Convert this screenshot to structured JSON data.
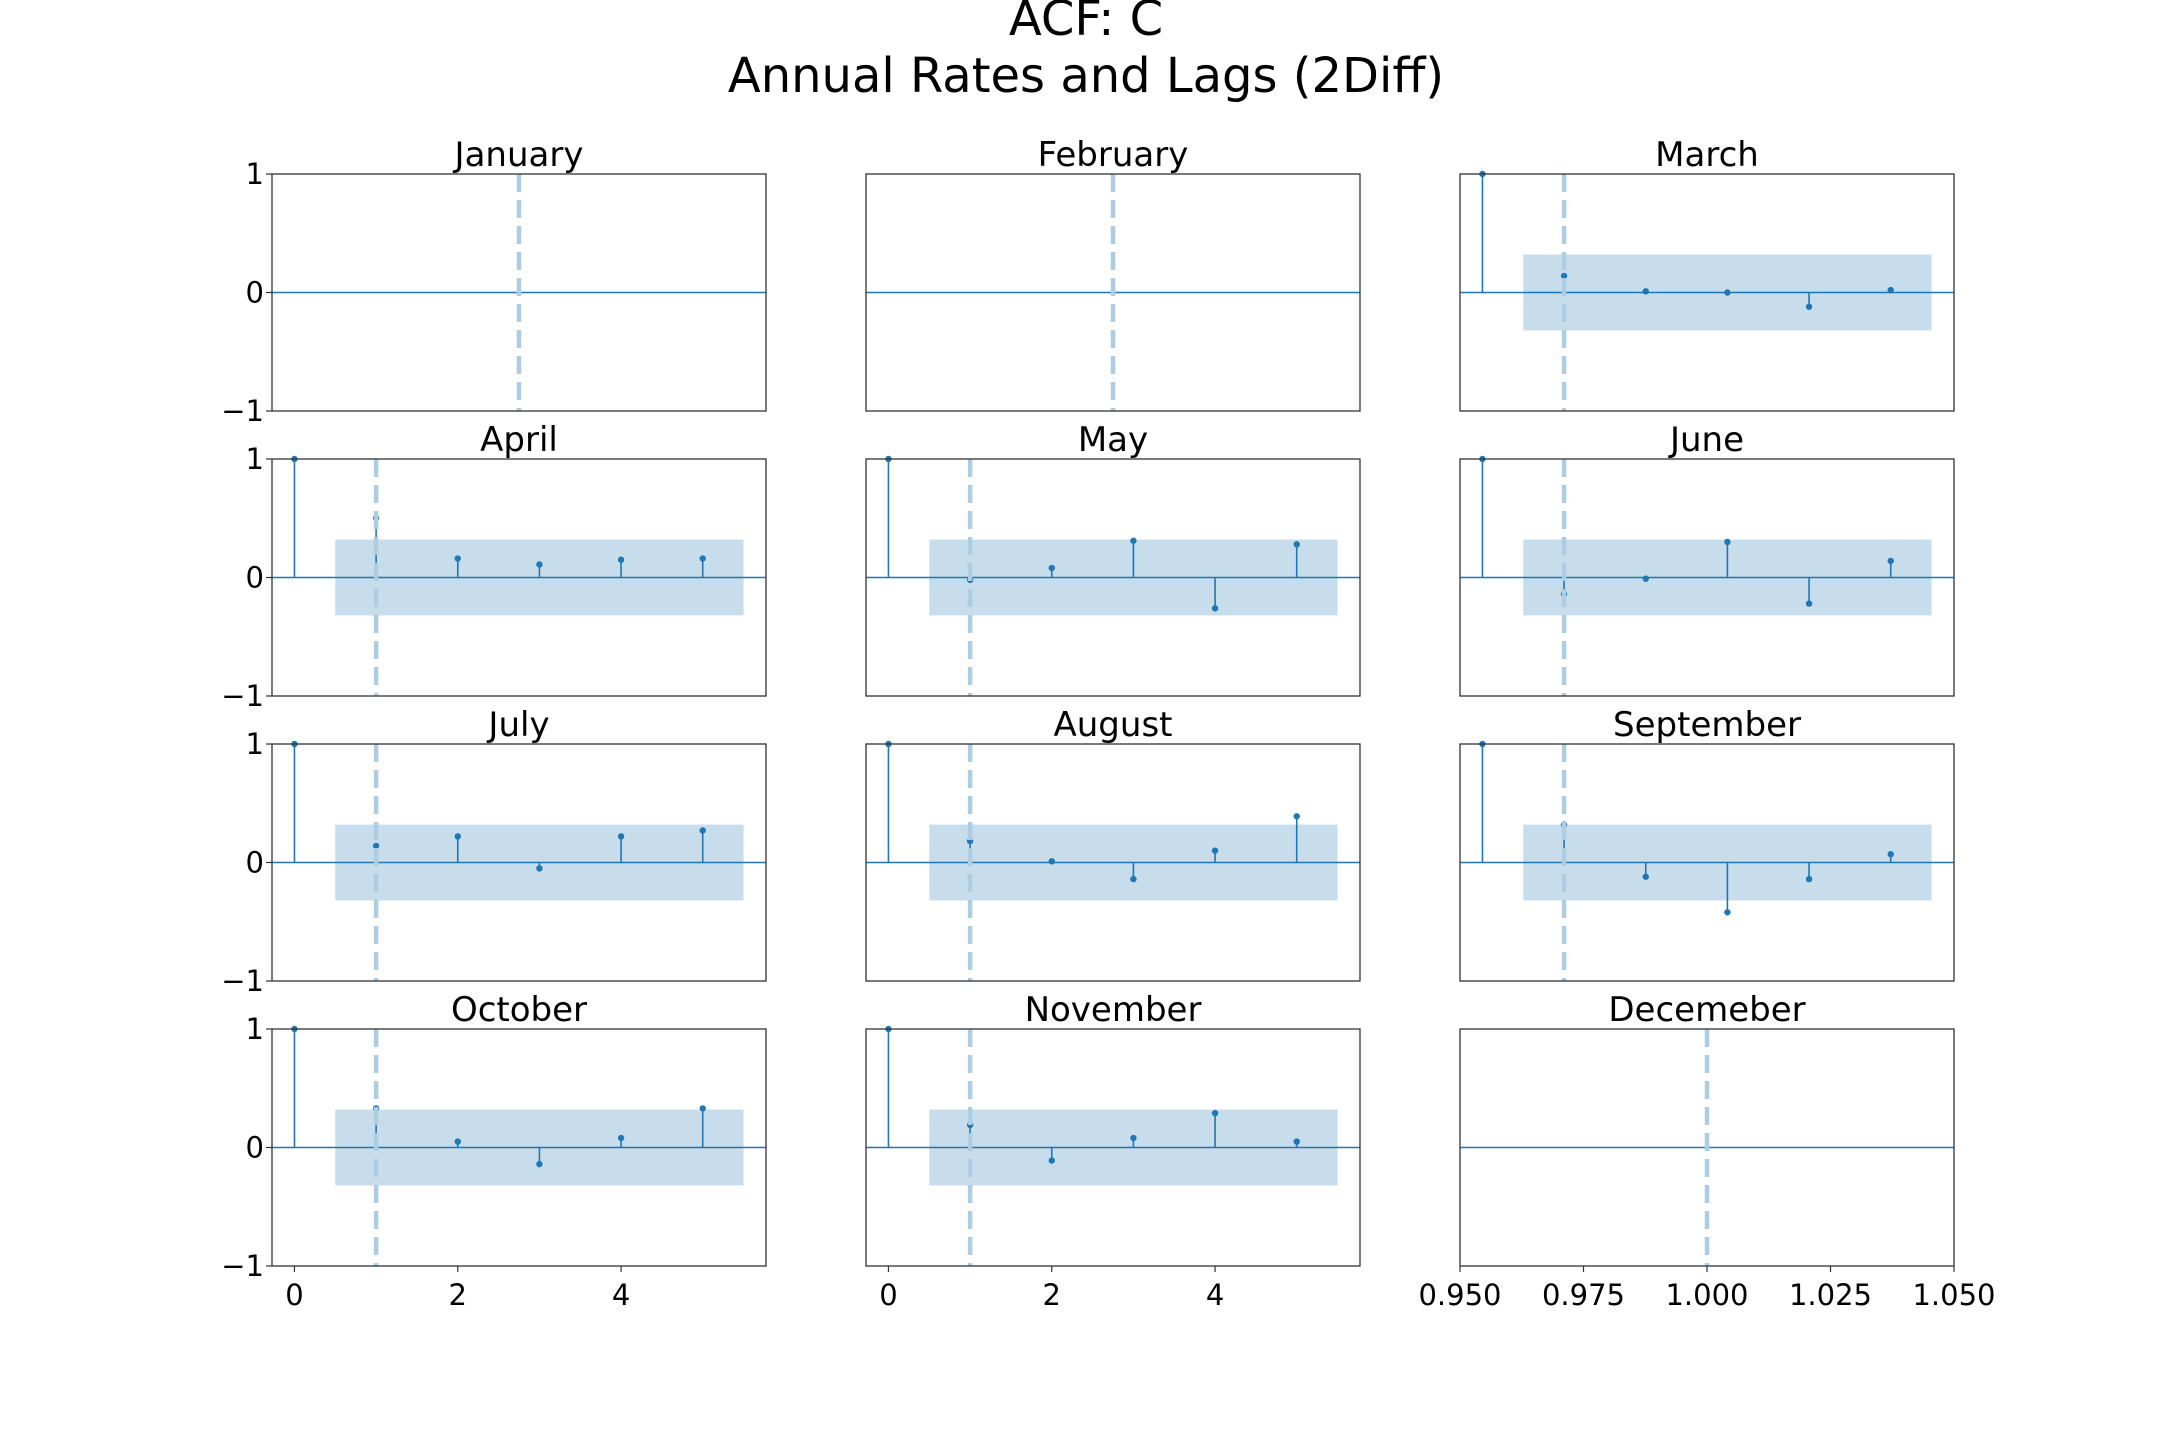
{
  "title_line1": "ACF: C",
  "title_line2": "Annual Rates and Lags (2Diff)",
  "colors": {
    "stem": "#1f77b4",
    "band": "#1f77b4",
    "dashed": "#aecde3",
    "axes": "#333333"
  },
  "chart_data": [
    {
      "type": "stem",
      "title": "January",
      "xlim": [
        -0.275,
        5.775
      ],
      "ylim": [
        -1,
        1
      ],
      "lags": [],
      "values": [],
      "conf": null,
      "vline": 2.75,
      "grid": false
    },
    {
      "type": "stem",
      "title": "February",
      "xlim": [
        -0.275,
        5.775
      ],
      "ylim": [
        -1,
        1
      ],
      "lags": [],
      "values": [],
      "conf": null,
      "vline": 2.75,
      "grid": false
    },
    {
      "type": "stem",
      "title": "March",
      "xlim": [
        -0.275,
        5.775
      ],
      "ylim": [
        -1,
        1
      ],
      "lags": [
        0,
        1,
        2,
        3,
        4,
        5
      ],
      "values": [
        1.0,
        0.14,
        0.01,
        0.0,
        -0.12,
        0.02
      ],
      "conf": 0.32,
      "vline": 1,
      "grid": false
    },
    {
      "type": "stem",
      "title": "April",
      "xlim": [
        -0.275,
        5.775
      ],
      "ylim": [
        -1,
        1
      ],
      "lags": [
        0,
        1,
        2,
        3,
        4,
        5
      ],
      "values": [
        1.0,
        0.5,
        0.16,
        0.11,
        0.15,
        0.16
      ],
      "conf": 0.32,
      "vline": 1,
      "grid": false
    },
    {
      "type": "stem",
      "title": "May",
      "xlim": [
        -0.275,
        5.775
      ],
      "ylim": [
        -1,
        1
      ],
      "lags": [
        0,
        1,
        2,
        3,
        4,
        5
      ],
      "values": [
        1.0,
        -0.02,
        0.08,
        0.31,
        -0.26,
        0.28
      ],
      "conf": 0.32,
      "vline": 1,
      "grid": false
    },
    {
      "type": "stem",
      "title": "June",
      "xlim": [
        -0.275,
        5.775
      ],
      "ylim": [
        -1,
        1
      ],
      "lags": [
        0,
        1,
        2,
        3,
        4,
        5
      ],
      "values": [
        1.0,
        -0.14,
        -0.01,
        0.3,
        -0.22,
        0.14
      ],
      "conf": 0.32,
      "vline": 1,
      "grid": false
    },
    {
      "type": "stem",
      "title": "July",
      "xlim": [
        -0.275,
        5.775
      ],
      "ylim": [
        -1,
        1
      ],
      "lags": [
        0,
        1,
        2,
        3,
        4,
        5
      ],
      "values": [
        1.0,
        0.14,
        0.22,
        -0.05,
        0.22,
        0.27
      ],
      "conf": 0.32,
      "vline": 1,
      "grid": false
    },
    {
      "type": "stem",
      "title": "August",
      "xlim": [
        -0.275,
        5.775
      ],
      "ylim": [
        -1,
        1
      ],
      "lags": [
        0,
        1,
        2,
        3,
        4,
        5
      ],
      "values": [
        1.0,
        0.18,
        0.01,
        -0.14,
        0.1,
        0.39
      ],
      "conf": 0.32,
      "vline": 1,
      "grid": false
    },
    {
      "type": "stem",
      "title": "September",
      "xlim": [
        -0.275,
        5.775
      ],
      "ylim": [
        -1,
        1
      ],
      "lags": [
        0,
        1,
        2,
        3,
        4,
        5
      ],
      "values": [
        1.0,
        0.32,
        -0.12,
        -0.42,
        -0.14,
        0.07
      ],
      "conf": 0.32,
      "vline": 1,
      "grid": false
    },
    {
      "type": "stem",
      "title": "October",
      "xlim": [
        -0.275,
        5.775
      ],
      "ylim": [
        -1,
        1
      ],
      "lags": [
        0,
        1,
        2,
        3,
        4,
        5
      ],
      "values": [
        1.0,
        0.33,
        0.05,
        -0.14,
        0.08,
        0.33
      ],
      "conf": 0.32,
      "vline": 1,
      "grid": false
    },
    {
      "type": "stem",
      "title": "November",
      "xlim": [
        -0.275,
        5.775
      ],
      "ylim": [
        -1,
        1
      ],
      "lags": [
        0,
        1,
        2,
        3,
        4,
        5
      ],
      "values": [
        1.0,
        0.19,
        -0.11,
        0.08,
        0.29,
        0.05
      ],
      "conf": 0.32,
      "vline": 1,
      "grid": false
    },
    {
      "type": "stem",
      "title": "Decemeber",
      "xlim": [
        0.95,
        1.05
      ],
      "ylim": [
        -1,
        1
      ],
      "lags": [],
      "values": [],
      "conf": null,
      "vline": 1.0,
      "grid": false
    }
  ],
  "y_ticks": {
    "values": [
      1,
      0,
      -1
    ],
    "labels": [
      "1",
      "0",
      "−1"
    ]
  },
  "x_ticks_stem": {
    "values": [
      0,
      2,
      4
    ],
    "labels": [
      "0",
      "2",
      "4"
    ]
  },
  "x_ticks_december": {
    "values": [
      0.95,
      0.975,
      1.0,
      1.025,
      1.05
    ],
    "labels": [
      "0.950",
      "0.975",
      "1.000",
      "1.025",
      "1.050"
    ]
  }
}
